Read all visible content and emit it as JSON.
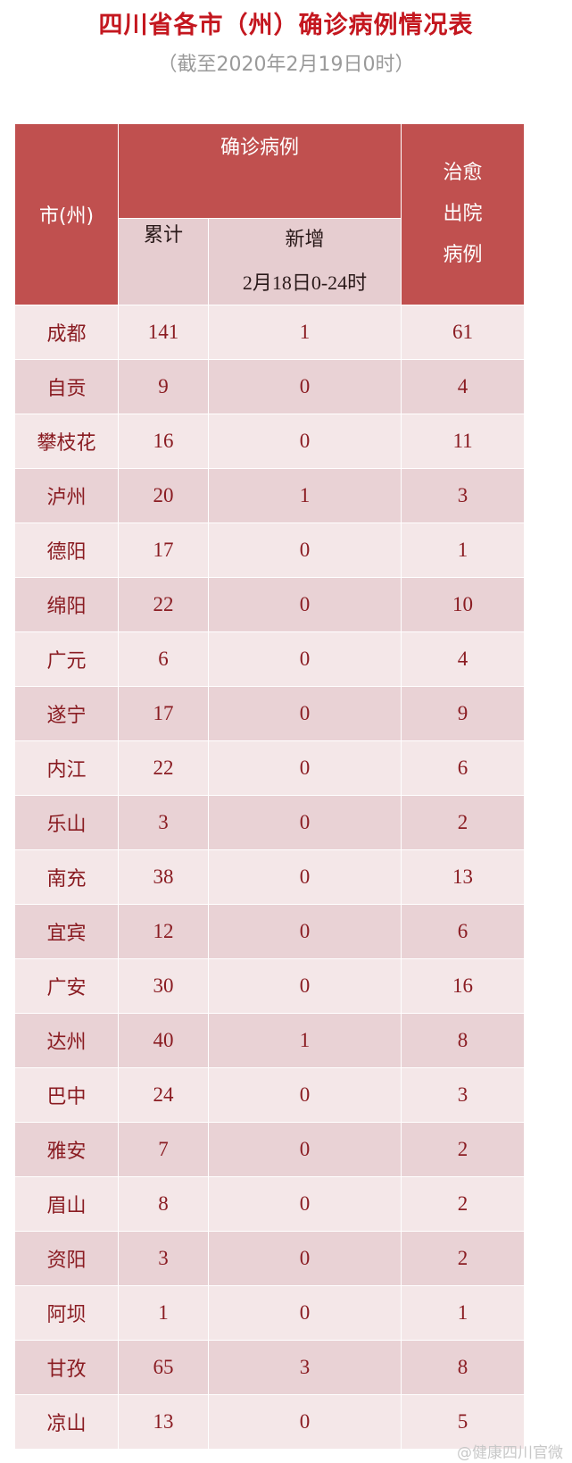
{
  "title": "四川省各市（州）确诊病例情况表",
  "subtitle": "（截至2020年2月19日0时）",
  "header": {
    "city": "市(州)",
    "confirmed": "确诊病例",
    "cumulative": "累计",
    "new": "新增",
    "new_period": "2月18日0-24时",
    "recovered_1": "治愈",
    "recovered_2": "出院",
    "recovered_3": "病例"
  },
  "rows": [
    {
      "city": "成都",
      "cumulative": "141",
      "new": "1",
      "recovered": "61"
    },
    {
      "city": "自贡",
      "cumulative": "9",
      "new": "0",
      "recovered": "4"
    },
    {
      "city": "攀枝花",
      "cumulative": "16",
      "new": "0",
      "recovered": "11"
    },
    {
      "city": "泸州",
      "cumulative": "20",
      "new": "1",
      "recovered": "3"
    },
    {
      "city": "德阳",
      "cumulative": "17",
      "new": "0",
      "recovered": "1"
    },
    {
      "city": "绵阳",
      "cumulative": "22",
      "new": "0",
      "recovered": "10"
    },
    {
      "city": "广元",
      "cumulative": "6",
      "new": "0",
      "recovered": "4"
    },
    {
      "city": "遂宁",
      "cumulative": "17",
      "new": "0",
      "recovered": "9"
    },
    {
      "city": "内江",
      "cumulative": "22",
      "new": "0",
      "recovered": "6"
    },
    {
      "city": "乐山",
      "cumulative": "3",
      "new": "0",
      "recovered": "2"
    },
    {
      "city": "南充",
      "cumulative": "38",
      "new": "0",
      "recovered": "13"
    },
    {
      "city": "宜宾",
      "cumulative": "12",
      "new": "0",
      "recovered": "6"
    },
    {
      "city": "广安",
      "cumulative": "30",
      "new": "0",
      "recovered": "16"
    },
    {
      "city": "达州",
      "cumulative": "40",
      "new": "1",
      "recovered": "8"
    },
    {
      "city": "巴中",
      "cumulative": "24",
      "new": "0",
      "recovered": "3"
    },
    {
      "city": "雅安",
      "cumulative": "7",
      "new": "0",
      "recovered": "2"
    },
    {
      "city": "眉山",
      "cumulative": "8",
      "new": "0",
      "recovered": "2"
    },
    {
      "city": "资阳",
      "cumulative": "3",
      "new": "0",
      "recovered": "2"
    },
    {
      "city": "阿坝",
      "cumulative": "1",
      "new": "0",
      "recovered": "1"
    },
    {
      "city": "甘孜",
      "cumulative": "65",
      "new": "3",
      "recovered": "8"
    },
    {
      "city": "凉山",
      "cumulative": "13",
      "new": "0",
      "recovered": "5"
    }
  ],
  "watermark": "@健康四川官微",
  "colors": {
    "header": "#c0504f",
    "title": "#c4171f",
    "text": "#8a1c22"
  }
}
